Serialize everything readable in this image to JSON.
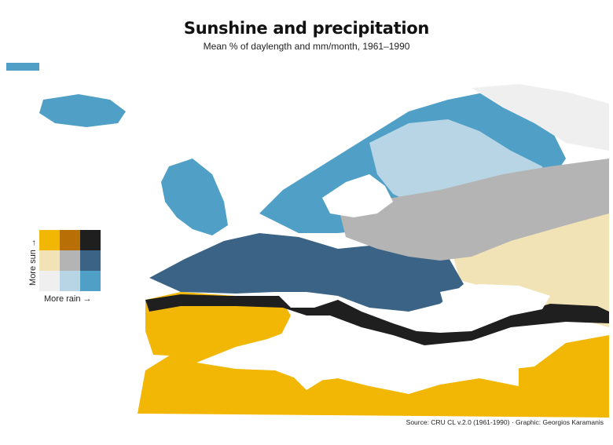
{
  "title": "Sunshine and precipitation",
  "subtitle": "Mean % of daylength and mm/month, 1961–1990",
  "legend": {
    "y_label": "More sun →",
    "x_label": "More rain →",
    "grid_colors": [
      [
        "#f2b705",
        "#b86f05",
        "#1f1f1f"
      ],
      [
        "#f1e3b5",
        "#b4b4b4",
        "#3b6385"
      ],
      [
        "#efefef",
        "#b7d5e5",
        "#4f9fc6"
      ]
    ]
  },
  "colors": {
    "sea": "#ffffff",
    "sunny_dry": "#f2b705",
    "sunny_mid": "#b86f05",
    "sunny_wet": "#1f1f1f",
    "mid_dry": "#f1e3b5",
    "mid_mid": "#b4b4b4",
    "mid_wet": "#3b6385",
    "cloudy_dry": "#efefef",
    "cloudy_mid": "#b7d5e5",
    "cloudy_wet": "#4f9fc6"
  },
  "source": "Source: CRU CL v.2.0 (1961-1990) · Graphic: Georgios Karamanis"
}
